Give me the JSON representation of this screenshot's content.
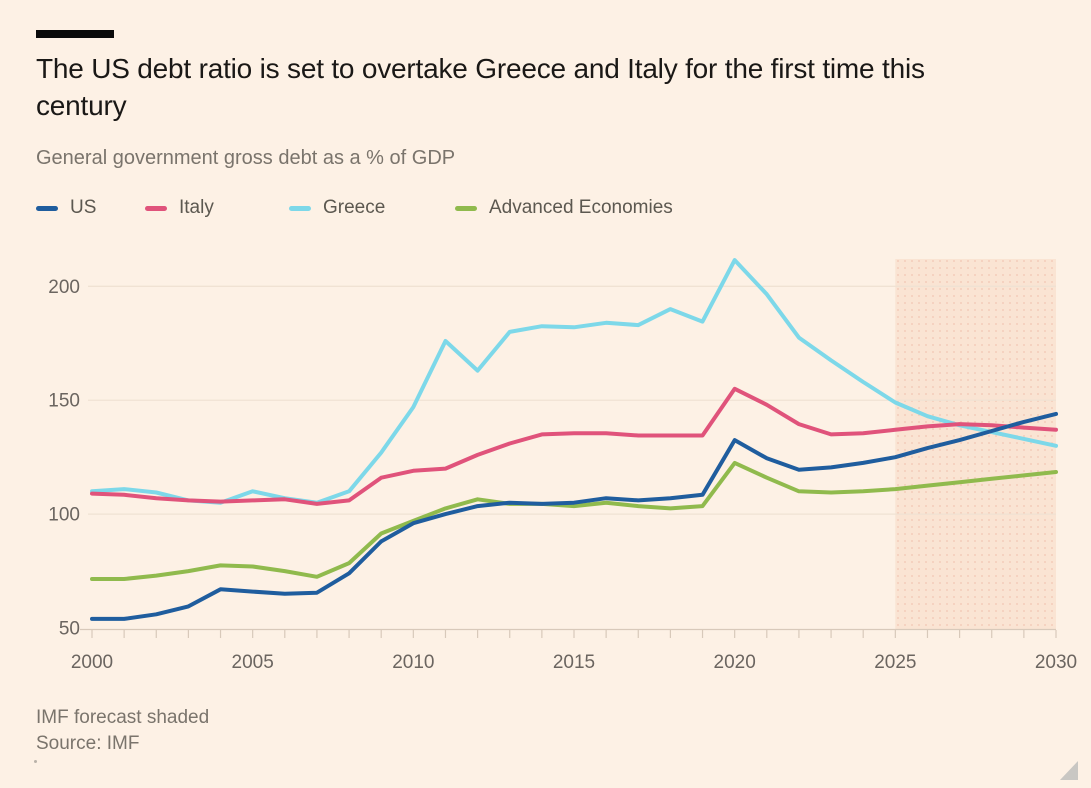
{
  "header": {
    "title": "The US debt ratio is set to overtake Greece and Italy for the first time this century",
    "subtitle": "General government gross debt as a % of GDP"
  },
  "footer": {
    "note": "IMF forecast shaded",
    "source": "Source: IMF"
  },
  "colors": {
    "background": "#fdf1e5",
    "title_text": "#1a1816",
    "muted_text": "#7a746c",
    "axis_text": "#6b6560",
    "gridline": "#f0e2d3",
    "axis_line": "#d8c9ba",
    "forecast_fill": "#fae4d3",
    "forecast_dots": "#f4cdb9"
  },
  "chart_data": {
    "type": "line",
    "title": "The US debt ratio is set to overtake Greece and Italy for the first time this century",
    "subtitle": "General government gross debt as a % of GDP",
    "xlabel": "",
    "ylabel": "",
    "x": [
      2000,
      2001,
      2002,
      2003,
      2004,
      2005,
      2006,
      2007,
      2008,
      2009,
      2010,
      2011,
      2012,
      2013,
      2014,
      2015,
      2016,
      2017,
      2018,
      2019,
      2020,
      2021,
      2022,
      2023,
      2024,
      2025,
      2026,
      2027,
      2028,
      2029,
      2030
    ],
    "series": [
      {
        "name": "US",
        "color": "#1f5d9e",
        "values": [
          54,
          54,
          56,
          59.5,
          67,
          66,
          65,
          65.5,
          74,
          88,
          96,
          100,
          103.5,
          105,
          104.5,
          105,
          107,
          106,
          107,
          108.5,
          132.5,
          124.5,
          119.5,
          120.5,
          122.5,
          125,
          129,
          132.5,
          136.5,
          140.5,
          144
        ]
      },
      {
        "name": "Italy",
        "color": "#e0537b",
        "values": [
          109,
          108.5,
          107,
          106,
          105.5,
          106,
          106.5,
          104.5,
          106,
          116,
          119,
          120,
          126,
          131,
          135,
          135.5,
          135.5,
          134.5,
          134.5,
          134.5,
          155,
          148,
          139.5,
          135,
          135.5,
          137,
          138.5,
          139.5,
          139,
          138,
          137
        ]
      },
      {
        "name": "Greece",
        "color": "#7dd8e9",
        "values": [
          110,
          111,
          109.5,
          106,
          105,
          110,
          107,
          105,
          110,
          127,
          147,
          176,
          163,
          180,
          182.5,
          182,
          184,
          183,
          190,
          184.5,
          211.5,
          196.5,
          177.5,
          167.5,
          158,
          149,
          143,
          139,
          136,
          133,
          130
        ]
      },
      {
        "name": "Advanced Economies",
        "color": "#90ba4d",
        "values": [
          71.5,
          71.5,
          73,
          75,
          77.5,
          77,
          75,
          72.5,
          78.5,
          91.5,
          97,
          102.5,
          106.5,
          104.5,
          104.5,
          103.5,
          105,
          103.5,
          102.5,
          103.5,
          122.5,
          116,
          110,
          109.5,
          110,
          111,
          112.5,
          114,
          115.5,
          117,
          118.5
        ]
      }
    ],
    "ylim": [
      50,
      212
    ],
    "y_ticks": [
      50,
      100,
      150,
      200
    ],
    "x_ticks": [
      2000,
      2005,
      2010,
      2015,
      2020,
      2025,
      2030
    ],
    "grid": "horizontal",
    "legend_position": "top",
    "forecast": {
      "start": 2025,
      "end": 2030,
      "note": "IMF forecast shaded"
    }
  }
}
